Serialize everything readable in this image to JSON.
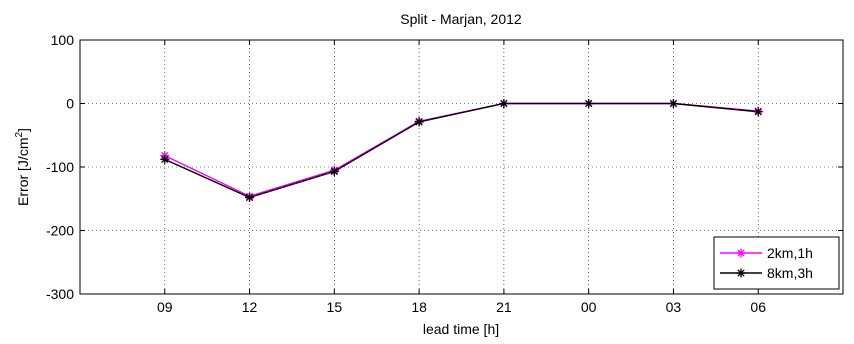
{
  "chart_data": {
    "type": "line",
    "title": "Split - Marjan, 2012",
    "xlabel": "lead time [h]",
    "ylabel_prefix": "Error [J/cm",
    "ylabel_sup": "2",
    "ylabel_suffix": "]",
    "categories": [
      "09",
      "12",
      "15",
      "18",
      "21",
      "00",
      "03",
      "06"
    ],
    "ylim": [
      -300,
      100
    ],
    "yticks": [
      -300,
      -200,
      -100,
      0,
      100
    ],
    "ytick_labels": [
      "-300",
      "-200",
      "-100",
      "0",
      "100"
    ],
    "grid": true,
    "legend_position": "bottom-right",
    "series": [
      {
        "name": "2km,1h",
        "color": "#ff00ff",
        "marker": "asterisk",
        "values": [
          -82,
          -146,
          -105,
          -28,
          0,
          0,
          0,
          -12
        ]
      },
      {
        "name": "8km,3h",
        "color": "#000000",
        "marker": "asterisk",
        "values": [
          -88,
          -148,
          -107,
          -29,
          0,
          0,
          0,
          -13
        ]
      }
    ]
  }
}
